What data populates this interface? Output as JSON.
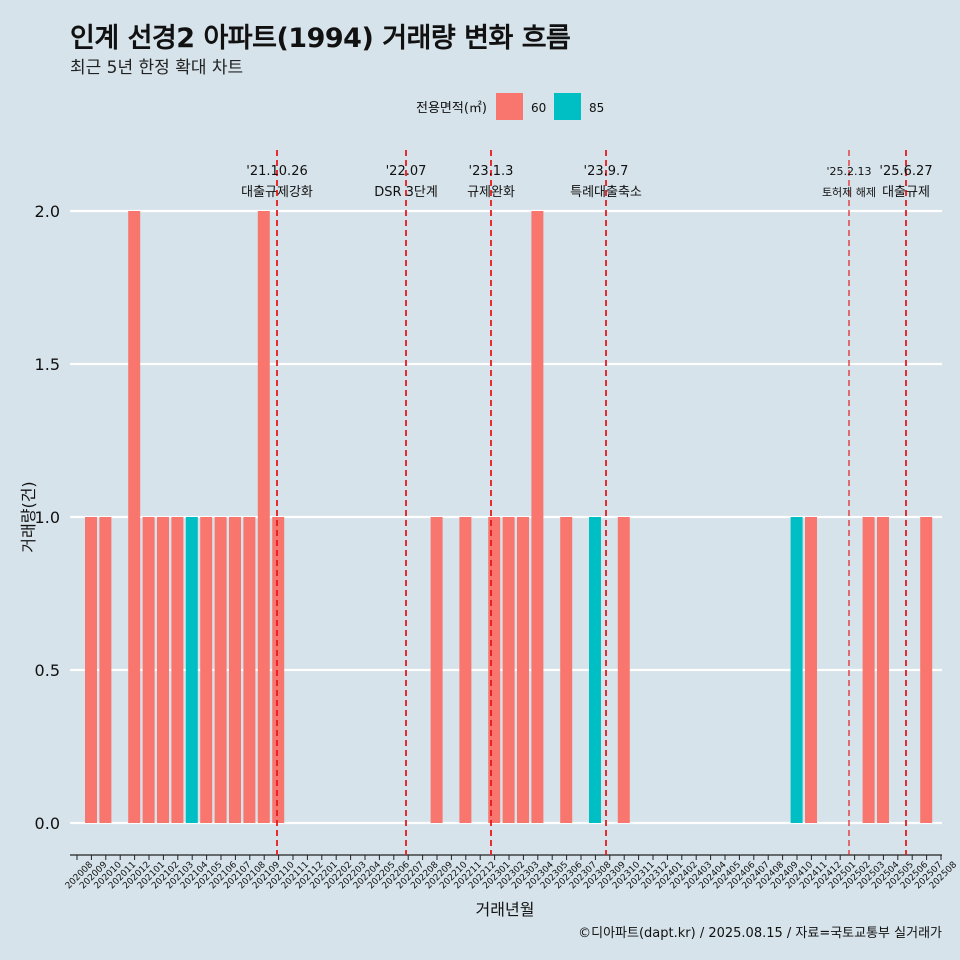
{
  "chart_data": {
    "type": "bar",
    "title": "인계 선경2 아파트(1994) 거래량 변화 흐름",
    "subtitle": "최근 5년 한정 확대 차트",
    "xlabel": "거래년월",
    "ylabel": "거래량(건)",
    "ylim": [
      0,
      2.0
    ],
    "yticks": [
      "0.0",
      "0.5",
      "1.0",
      "1.5",
      "2.0"
    ],
    "grid": "horizontal",
    "legend": {
      "title": "전용면적(㎡)",
      "position": "top"
    },
    "categories": [
      "202008",
      "202009",
      "202010",
      "202011",
      "202012",
      "202101",
      "202102",
      "202103",
      "202104",
      "202105",
      "202106",
      "202107",
      "202108",
      "202109",
      "202110",
      "202111",
      "202112",
      "202201",
      "202202",
      "202203",
      "202204",
      "202205",
      "202206",
      "202207",
      "202208",
      "202209",
      "202210",
      "202211",
      "202212",
      "202301",
      "202302",
      "202303",
      "202304",
      "202305",
      "202306",
      "202307",
      "202308",
      "202309",
      "202310",
      "202311",
      "202312",
      "202401",
      "202402",
      "202403",
      "202404",
      "202405",
      "202406",
      "202407",
      "202408",
      "202409",
      "202410",
      "202411",
      "202412",
      "202501",
      "202502",
      "202503",
      "202504",
      "202505",
      "202506",
      "202507",
      "202508"
    ],
    "series": [
      {
        "name": "60",
        "color": "#f8766d",
        "values": [
          1,
          1,
          0,
          2,
          1,
          1,
          1,
          0,
          1,
          1,
          1,
          1,
          2,
          1,
          0,
          0,
          0,
          0,
          0,
          0,
          0,
          0,
          0,
          0,
          1,
          0,
          1,
          0,
          1,
          1,
          1,
          2,
          0,
          1,
          0,
          0,
          0,
          1,
          0,
          0,
          0,
          0,
          0,
          0,
          0,
          0,
          0,
          0,
          0,
          0,
          1,
          0,
          0,
          0,
          1,
          1,
          0,
          0,
          1,
          0,
          0
        ]
      },
      {
        "name": "85",
        "color": "#00bfc4",
        "values": [
          0,
          0,
          0,
          0,
          0,
          0,
          0,
          1,
          0,
          0,
          0,
          0,
          0,
          0,
          0,
          0,
          0,
          0,
          0,
          0,
          0,
          0,
          0,
          0,
          0,
          0,
          0,
          0,
          0,
          0,
          0,
          0,
          0,
          0,
          0,
          1,
          0,
          0,
          0,
          0,
          0,
          0,
          0,
          0,
          0,
          0,
          0,
          0,
          0,
          1,
          0,
          0,
          0,
          0,
          0,
          0,
          0,
          0,
          0,
          0,
          0
        ]
      }
    ],
    "annotations": [
      {
        "date": "'21.10.26",
        "label": "대출규제강화"
      },
      {
        "date": "'22.07",
        "label": "DSR 3단계"
      },
      {
        "date": "'23.1.3",
        "label": "규제완화"
      },
      {
        "date": "'23.9.7",
        "label": "특례대출축소"
      },
      {
        "date": "'25.2.13",
        "label": "토허제 해제"
      },
      {
        "date": "'25.6.27",
        "label": "대출규제"
      }
    ]
  },
  "caption": "©디아파트(dapt.kr) / 2025.08.15 / 자료=국토교통부 실거래가"
}
